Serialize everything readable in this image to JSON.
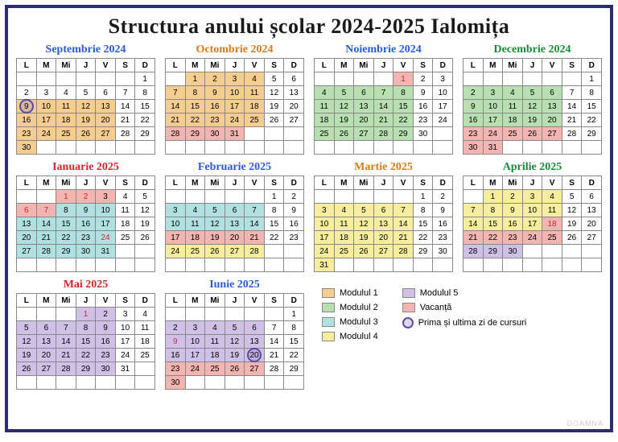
{
  "title": "Structura anului școlar 2024-2025 Ialomița",
  "watermark": "DOAMNA",
  "dayHeaders": [
    "L",
    "M",
    "Mi",
    "J",
    "V",
    "S",
    "D"
  ],
  "colors": {
    "mod1": "#f5cd90",
    "mod2": "#b7dfb0",
    "mod3": "#b0e0e0",
    "mod4": "#f6ee9d",
    "mod5": "#d0c0e8",
    "vac": "#f2b5b1",
    "titleColors": [
      "#2a5bd7",
      "#d77a1a",
      "#2a5bd7",
      "#1a8a3a",
      "#d0272c",
      "#2a5bd7",
      "#d77a1a",
      "#1a8a3a",
      "#d0272c",
      "#2a5bd7"
    ]
  },
  "legend": [
    [
      [
        "mod1",
        "Modulul 1"
      ],
      [
        "mod2",
        "Modulul 2"
      ],
      [
        "mod3",
        "Modulul 3"
      ],
      [
        "mod4",
        "Modulul 4"
      ]
    ],
    [
      [
        "mod5",
        "Modulul 5"
      ],
      [
        "vac",
        "Vacanță"
      ],
      [
        "circle",
        "Prima și ultima zi de cursuri"
      ]
    ]
  ],
  "months": [
    {
      "name": "Septembrie 2024",
      "startDow": 6,
      "days": 30,
      "cells": {
        "9": [
          "mod1",
          "circle"
        ],
        "10": [
          "mod1"
        ],
        "11": [
          "mod1"
        ],
        "12": [
          "mod1"
        ],
        "13": [
          "mod1"
        ],
        "16": [
          "mod1"
        ],
        "17": [
          "mod1"
        ],
        "18": [
          "mod1"
        ],
        "19": [
          "mod1"
        ],
        "20": [
          "mod1"
        ],
        "23": [
          "mod1"
        ],
        "24": [
          "mod1"
        ],
        "25": [
          "mod1"
        ],
        "26": [
          "mod1"
        ],
        "27": [
          "mod1"
        ],
        "30": [
          "mod1"
        ]
      }
    },
    {
      "name": "Octombrie 2024",
      "startDow": 1,
      "days": 31,
      "cells": {
        "1": [
          "mod1"
        ],
        "2": [
          "mod1"
        ],
        "3": [
          "mod1"
        ],
        "4": [
          "mod1"
        ],
        "7": [
          "mod1"
        ],
        "8": [
          "mod1"
        ],
        "9": [
          "mod1"
        ],
        "10": [
          "mod1"
        ],
        "11": [
          "mod1"
        ],
        "14": [
          "mod1"
        ],
        "15": [
          "mod1"
        ],
        "16": [
          "mod1"
        ],
        "17": [
          "mod1"
        ],
        "18": [
          "mod1"
        ],
        "21": [
          "mod1"
        ],
        "22": [
          "mod1"
        ],
        "23": [
          "mod1"
        ],
        "24": [
          "mod1"
        ],
        "25": [
          "mod1"
        ],
        "28": [
          "vac"
        ],
        "29": [
          "vac"
        ],
        "30": [
          "vac"
        ],
        "31": [
          "vac"
        ]
      }
    },
    {
      "name": "Noiembrie 2024",
      "startDow": 4,
      "days": 30,
      "cells": {
        "1": [
          "vac",
          "red"
        ],
        "4": [
          "mod2"
        ],
        "5": [
          "mod2"
        ],
        "6": [
          "mod2"
        ],
        "7": [
          "mod2"
        ],
        "8": [
          "mod2"
        ],
        "11": [
          "mod2"
        ],
        "12": [
          "mod2"
        ],
        "13": [
          "mod2"
        ],
        "14": [
          "mod2"
        ],
        "15": [
          "mod2"
        ],
        "18": [
          "mod2"
        ],
        "19": [
          "mod2"
        ],
        "20": [
          "mod2"
        ],
        "21": [
          "mod2"
        ],
        "22": [
          "mod2"
        ],
        "25": [
          "mod2"
        ],
        "26": [
          "mod2"
        ],
        "27": [
          "mod2"
        ],
        "28": [
          "mod2"
        ],
        "29": [
          "mod2"
        ]
      }
    },
    {
      "name": "Decembrie 2024",
      "startDow": 6,
      "days": 31,
      "cells": {
        "2": [
          "mod2"
        ],
        "3": [
          "mod2"
        ],
        "4": [
          "mod2"
        ],
        "5": [
          "mod2"
        ],
        "6": [
          "mod2"
        ],
        "9": [
          "mod2"
        ],
        "10": [
          "mod2"
        ],
        "11": [
          "mod2"
        ],
        "12": [
          "mod2"
        ],
        "13": [
          "mod2"
        ],
        "16": [
          "mod2"
        ],
        "17": [
          "mod2"
        ],
        "18": [
          "mod2"
        ],
        "19": [
          "mod2"
        ],
        "20": [
          "mod2"
        ],
        "23": [
          "vac"
        ],
        "24": [
          "vac"
        ],
        "25": [
          "vac"
        ],
        "26": [
          "vac"
        ],
        "27": [
          "vac"
        ],
        "30": [
          "vac"
        ],
        "31": [
          "vac"
        ]
      }
    },
    {
      "name": "Ianuarie 2025",
      "startDow": 2,
      "days": 31,
      "cells": {
        "1": [
          "vac",
          "red"
        ],
        "2": [
          "vac",
          "red"
        ],
        "3": [
          "vac"
        ],
        "6": [
          "vac",
          "red"
        ],
        "7": [
          "vac",
          "red"
        ],
        "8": [
          "mod3"
        ],
        "9": [
          "mod3"
        ],
        "10": [
          "mod3"
        ],
        "13": [
          "mod3"
        ],
        "14": [
          "mod3"
        ],
        "15": [
          "mod3"
        ],
        "16": [
          "mod3"
        ],
        "17": [
          "mod3"
        ],
        "20": [
          "mod3"
        ],
        "21": [
          "mod3"
        ],
        "22": [
          "mod3"
        ],
        "23": [
          "mod3"
        ],
        "24": [
          "mod3",
          "red"
        ],
        "27": [
          "mod3"
        ],
        "28": [
          "mod3"
        ],
        "29": [
          "mod3"
        ],
        "30": [
          "mod3"
        ],
        "31": [
          "mod3"
        ]
      }
    },
    {
      "name": "Februarie 2025",
      "startDow": 5,
      "days": 28,
      "cells": {
        "3": [
          "mod3"
        ],
        "4": [
          "mod3"
        ],
        "5": [
          "mod3"
        ],
        "6": [
          "mod3"
        ],
        "7": [
          "mod3"
        ],
        "10": [
          "mod3"
        ],
        "11": [
          "mod3"
        ],
        "12": [
          "mod3"
        ],
        "13": [
          "mod3"
        ],
        "14": [
          "mod3"
        ],
        "17": [
          "vac"
        ],
        "18": [
          "vac"
        ],
        "19": [
          "vac"
        ],
        "20": [
          "vac"
        ],
        "21": [
          "vac"
        ],
        "24": [
          "mod4"
        ],
        "25": [
          "mod4"
        ],
        "26": [
          "mod4"
        ],
        "27": [
          "mod4"
        ],
        "28": [
          "mod4"
        ]
      }
    },
    {
      "name": "Martie 2025",
      "startDow": 5,
      "days": 31,
      "cells": {
        "3": [
          "mod4"
        ],
        "4": [
          "mod4"
        ],
        "5": [
          "mod4"
        ],
        "6": [
          "mod4"
        ],
        "7": [
          "mod4"
        ],
        "10": [
          "mod4"
        ],
        "11": [
          "mod4"
        ],
        "12": [
          "mod4"
        ],
        "13": [
          "mod4"
        ],
        "14": [
          "mod4"
        ],
        "17": [
          "mod4"
        ],
        "18": [
          "mod4"
        ],
        "19": [
          "mod4"
        ],
        "20": [
          "mod4"
        ],
        "21": [
          "mod4"
        ],
        "24": [
          "mod4"
        ],
        "25": [
          "mod4"
        ],
        "26": [
          "mod4"
        ],
        "27": [
          "mod4"
        ],
        "28": [
          "mod4"
        ],
        "31": [
          "mod4"
        ]
      }
    },
    {
      "name": "Aprilie 2025",
      "startDow": 1,
      "days": 30,
      "cells": {
        "1": [
          "mod4"
        ],
        "2": [
          "mod4"
        ],
        "3": [
          "mod4"
        ],
        "4": [
          "mod4"
        ],
        "7": [
          "mod4"
        ],
        "8": [
          "mod4"
        ],
        "9": [
          "mod4"
        ],
        "10": [
          "mod4"
        ],
        "11": [
          "mod4"
        ],
        "14": [
          "mod4"
        ],
        "15": [
          "mod4"
        ],
        "16": [
          "mod4"
        ],
        "17": [
          "mod4"
        ],
        "18": [
          "vac",
          "red"
        ],
        "21": [
          "vac"
        ],
        "22": [
          "vac"
        ],
        "23": [
          "vac"
        ],
        "24": [
          "vac"
        ],
        "25": [
          "vac"
        ],
        "28": [
          "mod5"
        ],
        "29": [
          "mod5"
        ],
        "30": [
          "mod5"
        ]
      }
    },
    {
      "name": "Mai 2025",
      "startDow": 3,
      "days": 31,
      "cells": {
        "1": [
          "mod5",
          "red"
        ],
        "2": [
          "mod5"
        ],
        "5": [
          "mod5"
        ],
        "6": [
          "mod5"
        ],
        "7": [
          "mod5"
        ],
        "8": [
          "mod5"
        ],
        "9": [
          "mod5"
        ],
        "12": [
          "mod5"
        ],
        "13": [
          "mod5"
        ],
        "14": [
          "mod5"
        ],
        "15": [
          "mod5"
        ],
        "16": [
          "mod5"
        ],
        "19": [
          "mod5"
        ],
        "20": [
          "mod5"
        ],
        "21": [
          "mod5"
        ],
        "22": [
          "mod5"
        ],
        "23": [
          "mod5"
        ],
        "26": [
          "mod5"
        ],
        "27": [
          "mod5"
        ],
        "28": [
          "mod5"
        ],
        "29": [
          "mod5"
        ],
        "30": [
          "mod5"
        ]
      }
    },
    {
      "name": "Iunie 2025",
      "startDow": 6,
      "days": 30,
      "cells": {
        "2": [
          "mod5"
        ],
        "3": [
          "mod5"
        ],
        "4": [
          "mod5"
        ],
        "5": [
          "mod5"
        ],
        "6": [
          "mod5"
        ],
        "9": [
          "mod5",
          "red"
        ],
        "10": [
          "mod5"
        ],
        "11": [
          "mod5"
        ],
        "12": [
          "mod5"
        ],
        "13": [
          "mod5"
        ],
        "16": [
          "mod5"
        ],
        "17": [
          "mod5"
        ],
        "18": [
          "mod5"
        ],
        "19": [
          "mod5"
        ],
        "20": [
          "mod5",
          "circle"
        ],
        "23": [
          "vac"
        ],
        "24": [
          "vac"
        ],
        "25": [
          "vac"
        ],
        "26": [
          "vac"
        ],
        "27": [
          "vac"
        ],
        "30": [
          "vac"
        ]
      }
    }
  ]
}
